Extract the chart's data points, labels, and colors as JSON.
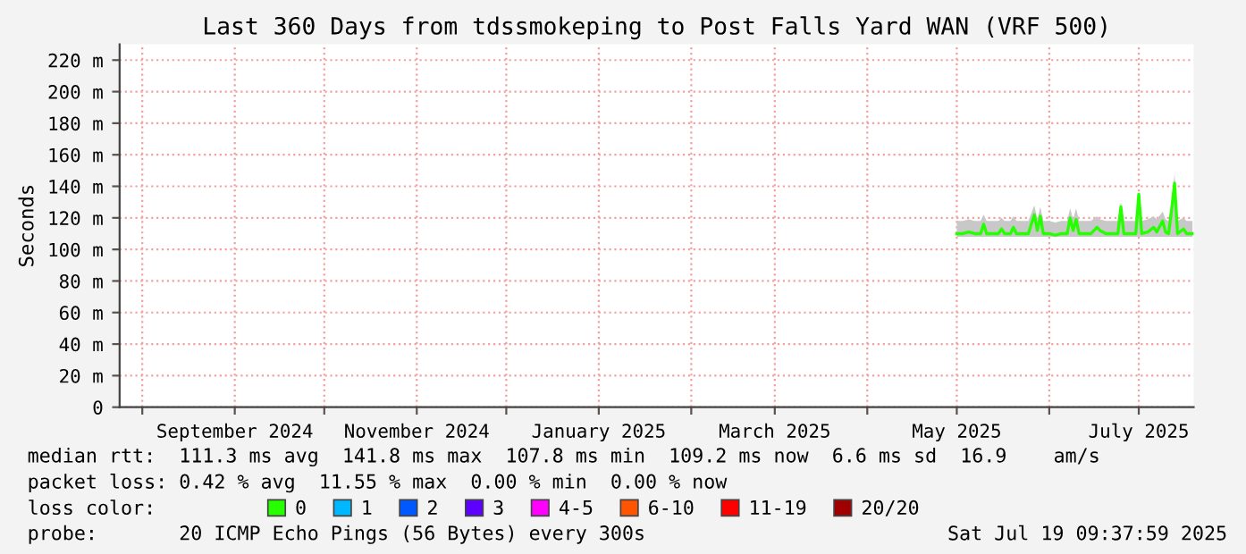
{
  "chart_data": {
    "type": "line",
    "title": "Last 360 Days from tdssmokeping to Post Falls Yard WAN (VRF 500)",
    "ylabel": "Seconds",
    "xlim": [
      "2024-07-24T09:37",
      "2025-07-19T09:37"
    ],
    "xticks": [
      {
        "value": "2024-08-01",
        "label": null
      },
      {
        "value": "2024-09-01",
        "label": "September 2024"
      },
      {
        "value": "2024-10-01",
        "label": null
      },
      {
        "value": "2024-11-01",
        "label": "November 2024"
      },
      {
        "value": "2024-12-01",
        "label": null
      },
      {
        "value": "2025-01-01",
        "label": "January 2025"
      },
      {
        "value": "2025-02-01",
        "label": null
      },
      {
        "value": "2025-03-01",
        "label": "March 2025"
      },
      {
        "value": "2025-04-01",
        "label": null
      },
      {
        "value": "2025-05-01",
        "label": "May 2025"
      },
      {
        "value": "2025-06-01",
        "label": null
      },
      {
        "value": "2025-07-01",
        "label": "July 2025"
      }
    ],
    "ylim": [
      0,
      230
    ],
    "yticks": [
      0,
      {
        "value": 20,
        "label": "20 m"
      },
      {
        "value": 40,
        "label": "40 m"
      },
      {
        "value": 60,
        "label": "60 m"
      },
      {
        "value": 80,
        "label": "80 m"
      },
      {
        "value": 100,
        "label": "100 m"
      },
      {
        "value": 120,
        "label": "120 m"
      },
      {
        "value": 140,
        "label": "140 m"
      },
      {
        "value": 160,
        "label": "160 m"
      },
      {
        "value": 180,
        "label": "180 m"
      },
      {
        "value": 200,
        "label": "200 m"
      },
      {
        "value": 220,
        "label": "220 m"
      }
    ],
    "grid": true,
    "legend": "bottom",
    "legend_title": "loss color:",
    "line_style": "solid",
    "x": [
      "2025-05-01",
      "2025-05-03",
      "2025-05-05",
      "2025-05-07",
      "2025-05-09",
      "2025-05-10",
      "2025-05-11",
      "2025-05-13",
      "2025-05-15",
      "2025-05-16",
      "2025-05-17",
      "2025-05-19",
      "2025-05-20",
      "2025-05-21",
      "2025-05-23",
      "2025-05-25",
      "2025-05-27",
      "2025-05-28",
      "2025-05-29",
      "2025-05-30",
      "2025-06-01",
      "2025-06-03",
      "2025-06-05",
      "2025-06-07",
      "2025-06-08",
      "2025-06-09",
      "2025-06-10",
      "2025-06-11",
      "2025-06-13",
      "2025-06-15",
      "2025-06-17",
      "2025-06-18",
      "2025-06-20",
      "2025-06-22",
      "2025-06-24",
      "2025-06-25",
      "2025-06-26",
      "2025-06-28",
      "2025-06-30",
      "2025-07-01",
      "2025-07-02",
      "2025-07-04",
      "2025-07-06",
      "2025-07-07",
      "2025-07-09",
      "2025-07-10",
      "2025-07-11",
      "2025-07-12",
      "2025-07-13",
      "2025-07-14",
      "2025-07-16",
      "2025-07-17",
      "2025-07-19"
    ],
    "series": [
      {
        "name": "0",
        "color": "#26ff00",
        "values": [
          110,
          110,
          111,
          110,
          110,
          116,
          110,
          110,
          110,
          113,
          110,
          110,
          114,
          110,
          110,
          110,
          122,
          112,
          121,
          110,
          110,
          109,
          110,
          110,
          120,
          112,
          119,
          110,
          110,
          110,
          114,
          112,
          110,
          110,
          110,
          127,
          110,
          110,
          110,
          135,
          110,
          111,
          114,
          111,
          118,
          111,
          110,
          125,
          142,
          110,
          113,
          110,
          110
        ],
        "lower": [
          108,
          108,
          108,
          108,
          108,
          108,
          108,
          108,
          108,
          108,
          108,
          108,
          108,
          108,
          108,
          108,
          108,
          108,
          108,
          108,
          108,
          108,
          108,
          108,
          108,
          108,
          108,
          108,
          108,
          108,
          108,
          108,
          108,
          108,
          108,
          108,
          108,
          108,
          108,
          108,
          108,
          108,
          108,
          108,
          108,
          108,
          108,
          108,
          108,
          108,
          108,
          108,
          108
        ],
        "upper": [
          118,
          118,
          119,
          118,
          118,
          122,
          118,
          118,
          118,
          120,
          118,
          118,
          121,
          118,
          118,
          118,
          128,
          119,
          127,
          118,
          118,
          117,
          118,
          118,
          126,
          119,
          126,
          118,
          118,
          118,
          121,
          119,
          118,
          118,
          118,
          130,
          118,
          118,
          118,
          136,
          118,
          119,
          121,
          119,
          124,
          119,
          118,
          130,
          148,
          118,
          120,
          118,
          118
        ]
      },
      {
        "name": "1",
        "color": "#00b8ff",
        "values": [
          null,
          null,
          null,
          null,
          null,
          null,
          null,
          null,
          null,
          null,
          null,
          null,
          null,
          null,
          null,
          null,
          null,
          null,
          null,
          null,
          null,
          null,
          null,
          null,
          null,
          null,
          null,
          null,
          null,
          null,
          null,
          null,
          null,
          null,
          null,
          null,
          null,
          null,
          null,
          null,
          null,
          null,
          null,
          null,
          null,
          null,
          null,
          null,
          null,
          null,
          null,
          null,
          null
        ]
      },
      {
        "name": "2",
        "color": "#0059ff",
        "values": [
          null,
          null,
          null,
          null,
          null,
          null,
          null,
          null,
          null,
          null,
          null,
          null,
          null,
          null,
          null,
          null,
          null,
          null,
          null,
          null,
          null,
          null,
          null,
          null,
          null,
          null,
          null,
          null,
          null,
          null,
          null,
          null,
          null,
          null,
          null,
          null,
          null,
          null,
          null,
          null,
          null,
          null,
          null,
          null,
          null,
          null,
          null,
          null,
          null,
          null,
          null,
          null,
          null
        ]
      },
      {
        "name": "3",
        "color": "#5e00ff",
        "values": [
          null,
          null,
          null,
          null,
          null,
          null,
          null,
          null,
          null,
          null,
          null,
          null,
          null,
          null,
          null,
          null,
          null,
          null,
          null,
          null,
          null,
          null,
          null,
          null,
          null,
          null,
          null,
          null,
          null,
          null,
          null,
          null,
          null,
          null,
          null,
          null,
          null,
          null,
          null,
          null,
          null,
          null,
          null,
          null,
          null,
          null,
          null,
          null,
          null,
          null,
          null,
          null,
          null
        ]
      },
      {
        "name": "4-5",
        "color": "#ff00ff",
        "values": [
          null,
          null,
          null,
          null,
          null,
          null,
          null,
          null,
          null,
          null,
          null,
          null,
          null,
          null,
          null,
          null,
          null,
          null,
          null,
          null,
          null,
          null,
          null,
          null,
          null,
          null,
          null,
          null,
          null,
          null,
          null,
          null,
          null,
          null,
          null,
          null,
          null,
          null,
          null,
          null,
          null,
          null,
          null,
          null,
          null,
          null,
          null,
          null,
          null,
          null,
          null,
          null,
          null
        ]
      },
      {
        "name": "6-10",
        "color": "#ff5500",
        "values": [
          null,
          null,
          null,
          null,
          null,
          null,
          null,
          null,
          null,
          null,
          null,
          null,
          null,
          null,
          null,
          null,
          null,
          null,
          null,
          null,
          null,
          null,
          null,
          null,
          null,
          null,
          null,
          null,
          null,
          null,
          null,
          null,
          null,
          null,
          null,
          null,
          null,
          null,
          null,
          null,
          null,
          null,
          null,
          null,
          null,
          null,
          null,
          null,
          null,
          null,
          null,
          null,
          null
        ]
      },
      {
        "name": "11-19",
        "color": "#ff0000",
        "values": [
          null,
          null,
          null,
          null,
          null,
          null,
          null,
          null,
          null,
          null,
          null,
          null,
          null,
          null,
          null,
          null,
          null,
          null,
          null,
          null,
          null,
          null,
          null,
          null,
          null,
          null,
          null,
          null,
          null,
          null,
          null,
          null,
          null,
          null,
          null,
          null,
          null,
          null,
          null,
          null,
          null,
          null,
          null,
          null,
          null,
          null,
          null,
          null,
          null,
          null,
          null,
          null,
          null
        ]
      },
      {
        "name": "20/20",
        "color": "#a10000",
        "values": [
          null,
          null,
          null,
          null,
          null,
          null,
          null,
          null,
          null,
          null,
          null,
          null,
          null,
          null,
          null,
          null,
          null,
          null,
          null,
          null,
          null,
          null,
          null,
          null,
          null,
          null,
          null,
          null,
          null,
          null,
          null,
          null,
          null,
          null,
          null,
          null,
          null,
          null,
          null,
          null,
          null,
          null,
          null,
          null,
          null,
          null,
          null,
          null,
          null,
          null,
          null,
          null,
          null
        ]
      }
    ],
    "annotations": [
      "median rtt:  111.3 ms avg  141.8 ms max  107.8 ms min  109.2 ms now  6.6 ms sd  16.9    am/s",
      "packet loss: 0.42 % avg  11.55 % max  0.00 % min  0.00 % now",
      "probe:       20 ICMP Echo Pings (56 Bytes) every 300s",
      "Sat Jul 19 09:37:59 2025"
    ]
  }
}
